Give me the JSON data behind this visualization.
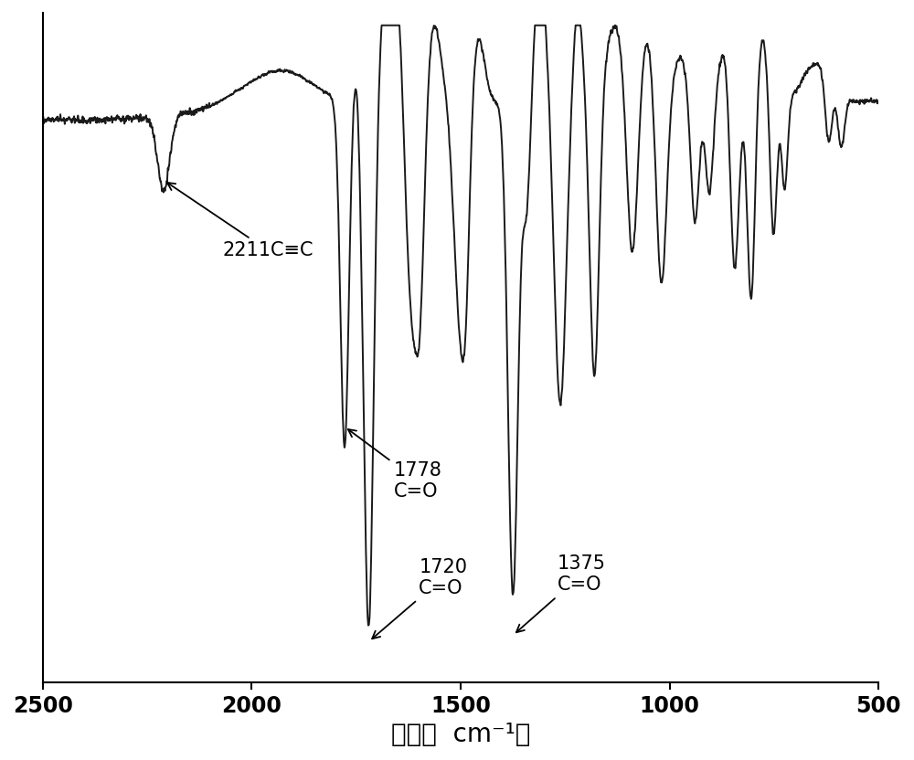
{
  "xlim": [
    2500,
    500
  ],
  "xlabel": "波数（  cm⁻¹）",
  "xlabel_fontsize": 20,
  "xticks": [
    2500,
    2000,
    1500,
    1000,
    500
  ],
  "line_color": "#1a1a1a",
  "line_width": 1.4,
  "background_color": "#ffffff"
}
